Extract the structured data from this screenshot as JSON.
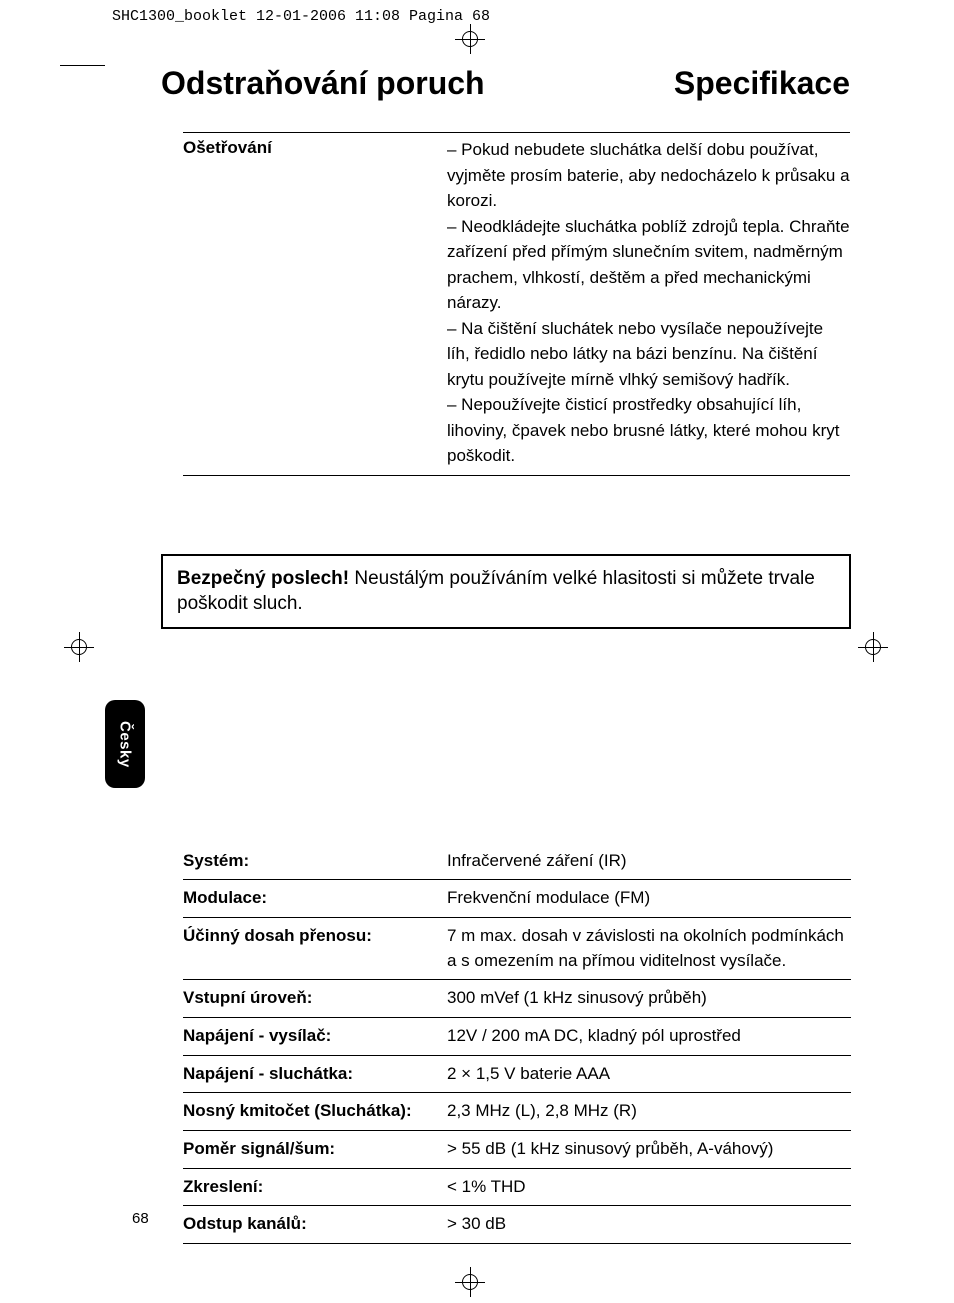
{
  "cropHeader": "SHC1300_booklet  12-01-2006  11:08  Pagina 68",
  "headings": {
    "left": "Odstraňování poruch",
    "right": "Specifikace"
  },
  "care": {
    "label": "Ošetřování",
    "body": "– Pokud nebudete sluchátka delší dobu používat, vyjměte prosím baterie, aby nedocházelo k průsaku a korozi.\n– Neodkládejte sluchátka poblíž zdrojů tepla. Chraňte zařízení před přímým slunečním svitem, nadměrným prachem, vlhkostí, deštěm a před mechanickými nárazy.\n– Na čištění sluchátek nebo vysílače nepoužívejte líh, ředidlo nebo látky na bázi benzínu. Na čištění krytu používejte mírně vlhký semišový hadřík.\n– Nepoužívejte čisticí prostředky obsahující líh, lihoviny, čpavek nebo brusné látky, které mohou kryt poškodit."
  },
  "notice": {
    "bold": "Bezpečný poslech!",
    "text": " Neustálým používáním velké hlasitosti si můžete trvale poškodit sluch."
  },
  "langTab": "Česky",
  "specs": [
    {
      "k": "Systém:",
      "v": "Infračervené záření (IR)"
    },
    {
      "k": "Modulace:",
      "v": "Frekvenční modulace (FM)"
    },
    {
      "k": "Účinný dosah přenosu:",
      "v": "7 m max. dosah v závislosti na okolních podmínkách a s omezením na přímou viditelnost vysílače."
    },
    {
      "k": "Vstupní úroveň:",
      "v": "300 mVef (1 kHz sinusový průběh)"
    },
    {
      "k": "Napájení - vysílač:",
      "v": "12V / 200 mA DC, kladný pól uprostřed"
    },
    {
      "k": "Napájení - sluchátka:",
      "v": "2 × 1,5 V baterie AAA"
    },
    {
      "k": "Nosný kmitočet (Sluchátka):",
      "v": "2,3 MHz (L), 2,8 MHz (R)"
    },
    {
      "k": "Poměr signál/šum:",
      "v": "> 55 dB (1 kHz sinusový průběh, A-váhový)"
    },
    {
      "k": "Zkreslení:",
      "v": "< 1% THD"
    },
    {
      "k": "Odstup kanálů:",
      "v": "> 30 dB"
    }
  ],
  "pageNumber": "68"
}
